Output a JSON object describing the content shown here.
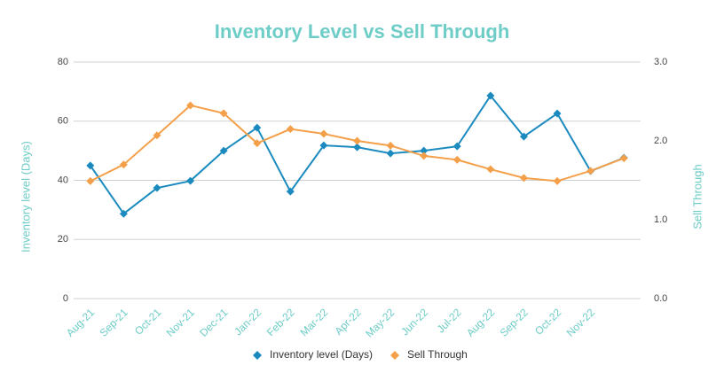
{
  "chart_data": {
    "type": "line",
    "title": "Inventory Level vs Sell Through",
    "y_label": "Inventory level (Days)",
    "y2_label": "Sell Through",
    "categories": [
      "Aug-21",
      "Sep-21",
      "Oct-21",
      "Nov-21",
      "Dec-21",
      "Jan-22",
      "Feb-22",
      "Mar-22",
      "Apr-22",
      "May-22",
      "Jun-22",
      "Jul-22",
      "Aug-22",
      "Sep-22",
      "Oct-22",
      "Nov-22",
      null
    ],
    "series": [
      {
        "name": "Inventory level (Days)",
        "color": "#1b8bbf",
        "axis": "y",
        "values": [
          45,
          28.7,
          37.4,
          39.8,
          50,
          57.8,
          36.2,
          51.8,
          51.2,
          49.1,
          50,
          51.5,
          68.6,
          54.8,
          62.6,
          43.1,
          47.6
        ]
      },
      {
        "name": "Sell Through",
        "color": "#f4a04a",
        "axis": "y2",
        "values": [
          1.49,
          1.7,
          2.07,
          2.45,
          2.35,
          1.97,
          2.15,
          2.09,
          2.0,
          1.94,
          1.81,
          1.76,
          1.64,
          1.53,
          1.49,
          1.62,
          1.78
        ]
      }
    ],
    "ylim": [
      0,
      80
    ],
    "yticks": [
      0,
      20,
      40,
      60,
      80
    ],
    "y2lim": [
      0,
      3
    ],
    "y2ticks": [
      {
        "value": 0,
        "label": "0.0"
      },
      {
        "value": 1,
        "label": "1.0"
      },
      {
        "value": 2,
        "label": "2.0"
      },
      {
        "value": 3,
        "label": "3.0"
      }
    ],
    "grid": true,
    "legend": "bottom"
  }
}
